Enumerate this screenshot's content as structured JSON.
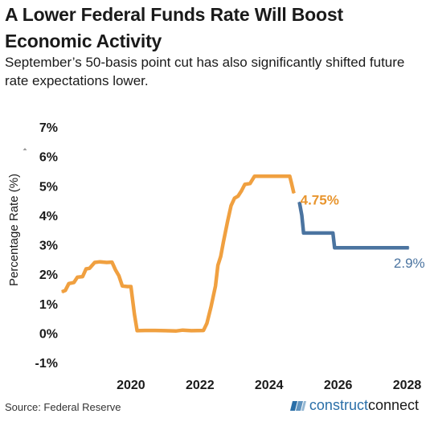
{
  "header": {
    "title": "A Lower Federal Funds Rate Will Boost Economic Activity",
    "subtitle": "September’s 50-basis point cut has also significantly shifted future rate expectations lower."
  },
  "footer": {
    "source": "Source: Federal Reserve",
    "brand_part1": "construct",
    "brand_part2": "connect"
  },
  "colors": {
    "historical": "#f0a040",
    "projected": "#4b74a0",
    "historical_label": "#e8952e",
    "projected_label": "#4b74a0",
    "axis_text": "#1a1a1a"
  },
  "chart_data": {
    "type": "line",
    "title": "A Lower Federal Funds Rate Will Boost Economic Activity",
    "subtitle": "September’s 50-basis point cut has also significantly shifted future rate expectations lower.",
    "xlabel": "",
    "ylabel": "Percentage Rate (%)",
    "xlim": [
      2018.0,
      2028.5
    ],
    "ylim": [
      -1,
      7
    ],
    "x_ticks": [
      2020,
      2022,
      2024,
      2026,
      2028
    ],
    "x_tick_labels": [
      "2020",
      "2022",
      "2024",
      "2026",
      "2028"
    ],
    "y_ticks": [
      -1,
      0,
      1,
      2,
      3,
      4,
      5,
      6,
      7
    ],
    "y_tick_labels": [
      "-1%",
      "0%",
      "1%",
      "2%",
      "3%",
      "4%",
      "5%",
      "6%",
      "7%"
    ],
    "grid": false,
    "series": [
      {
        "key": "historical",
        "points": [
          [
            2018.0,
            1.4
          ],
          [
            2018.1,
            1.45
          ],
          [
            2018.2,
            1.68
          ],
          [
            2018.35,
            1.72
          ],
          [
            2018.45,
            1.9
          ],
          [
            2018.6,
            1.92
          ],
          [
            2018.7,
            2.18
          ],
          [
            2018.8,
            2.2
          ],
          [
            2018.95,
            2.4
          ],
          [
            2019.1,
            2.42
          ],
          [
            2019.3,
            2.4
          ],
          [
            2019.45,
            2.41
          ],
          [
            2019.55,
            2.15
          ],
          [
            2019.65,
            1.95
          ],
          [
            2019.75,
            1.6
          ],
          [
            2019.9,
            1.58
          ],
          [
            2020.0,
            1.58
          ],
          [
            2020.1,
            0.65
          ],
          [
            2020.18,
            0.08
          ],
          [
            2020.4,
            0.09
          ],
          [
            2020.7,
            0.09
          ],
          [
            2021.0,
            0.08
          ],
          [
            2021.3,
            0.07
          ],
          [
            2021.5,
            0.1
          ],
          [
            2021.75,
            0.08
          ],
          [
            2022.1,
            0.09
          ],
          [
            2022.2,
            0.33
          ],
          [
            2022.32,
            0.9
          ],
          [
            2022.45,
            1.6
          ],
          [
            2022.52,
            2.3
          ],
          [
            2022.6,
            2.6
          ],
          [
            2022.68,
            3.1
          ],
          [
            2022.8,
            3.8
          ],
          [
            2022.9,
            4.33
          ],
          [
            2023.0,
            4.58
          ],
          [
            2023.1,
            4.65
          ],
          [
            2023.2,
            4.83
          ],
          [
            2023.3,
            5.05
          ],
          [
            2023.45,
            5.08
          ],
          [
            2023.58,
            5.33
          ],
          [
            2023.9,
            5.33
          ],
          [
            2024.3,
            5.33
          ],
          [
            2024.6,
            5.33
          ],
          [
            2024.65,
            5.1
          ],
          [
            2024.72,
            4.75
          ]
        ],
        "end_label": "4.75%"
      },
      {
        "key": "projected",
        "points": [
          [
            2024.88,
            4.45
          ],
          [
            2024.95,
            4.0
          ],
          [
            2025.0,
            3.4
          ],
          [
            2025.5,
            3.4
          ],
          [
            2025.85,
            3.4
          ],
          [
            2025.9,
            2.9
          ],
          [
            2026.4,
            2.9
          ],
          [
            2027.0,
            2.9
          ],
          [
            2027.6,
            2.9
          ],
          [
            2028.05,
            2.9
          ]
        ],
        "end_label": "2.9%"
      }
    ]
  }
}
